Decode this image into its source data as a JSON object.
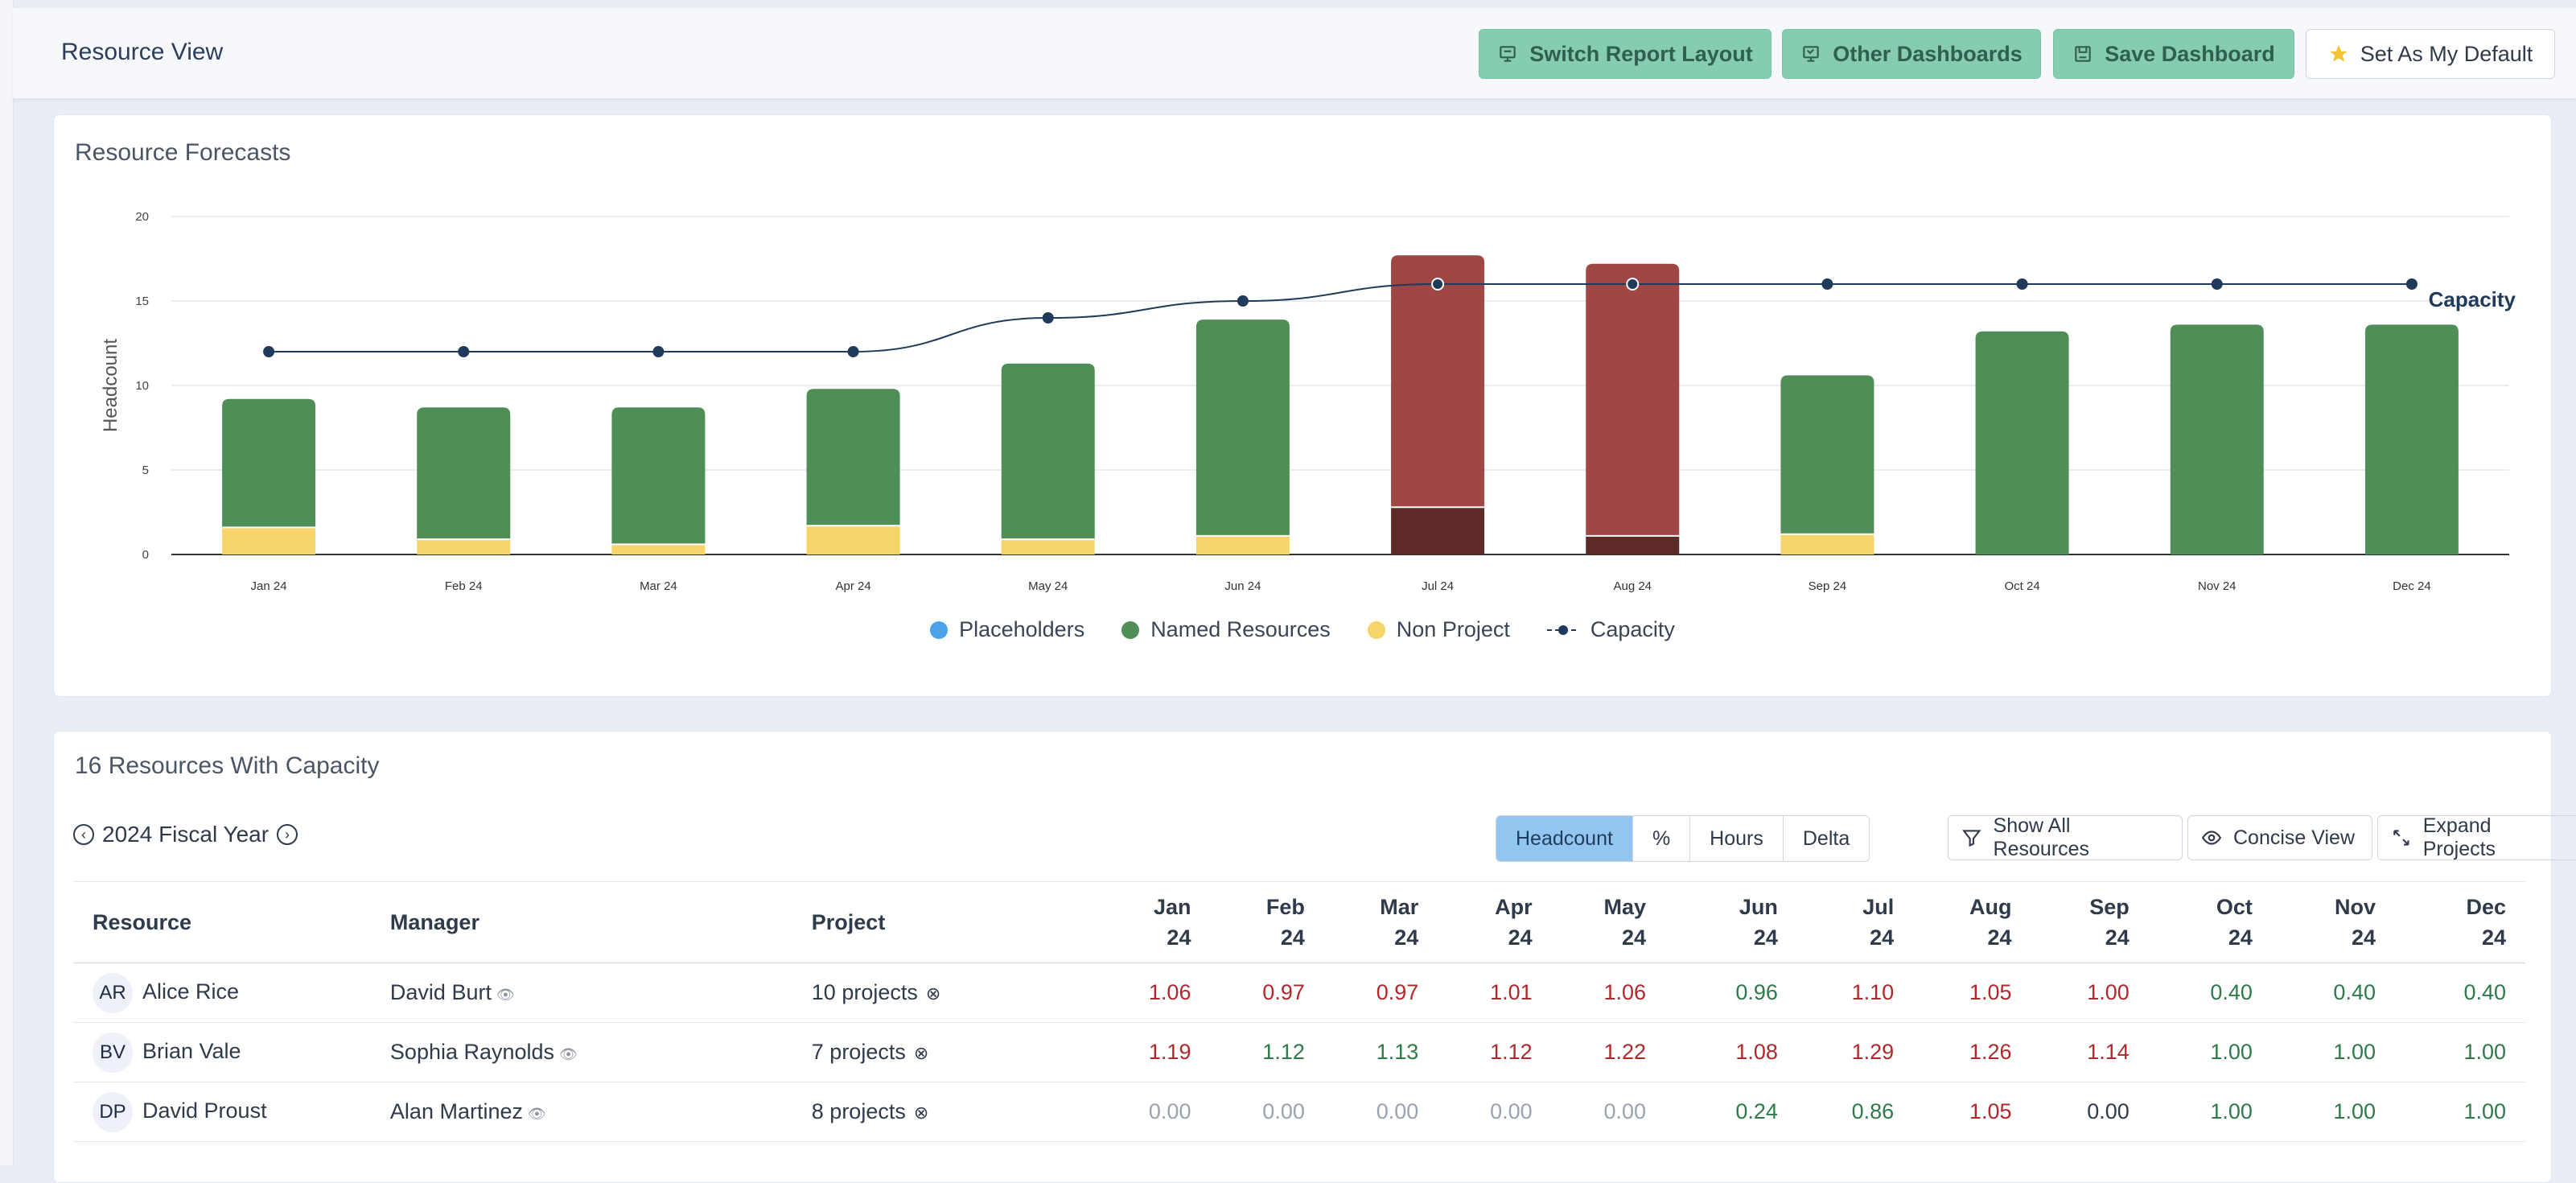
{
  "header": {
    "title": "Resource View",
    "buttons": {
      "switch_layout": "Switch Report Layout",
      "other_dashboards": "Other Dashboards",
      "save_dashboard": "Save Dashboard",
      "set_default": "Set As My Default"
    }
  },
  "forecast_card": {
    "title": "Resource Forecasts"
  },
  "chart_data": {
    "type": "bar",
    "ylabel": "Headcount",
    "ylim": [
      0,
      20
    ],
    "yticks": [
      0,
      5,
      10,
      15,
      20
    ],
    "categories": [
      "Jan 24",
      "Feb 24",
      "Mar 24",
      "Apr 24",
      "May 24",
      "Jun 24",
      "Jul 24",
      "Aug 24",
      "Sep 24",
      "Oct 24",
      "Nov 24",
      "Dec 24"
    ],
    "series": [
      {
        "name": "Placeholders",
        "color": "#4aa3e8",
        "values": [
          0,
          0,
          0,
          0,
          0,
          0,
          0,
          0,
          0,
          0,
          0,
          0
        ]
      },
      {
        "name": "Named Resources",
        "color": "#4f8f57",
        "over_capacity_color": "#9e4744",
        "values": [
          7.6,
          7.8,
          8.1,
          8.1,
          10.4,
          12.8,
          14.9,
          16.1,
          9.4,
          13.2,
          13.6,
          13.6
        ]
      },
      {
        "name": "Non Project",
        "color": "#f5d56a",
        "over_capacity_color": "#5e2a28",
        "values": [
          1.6,
          0.9,
          0.6,
          1.7,
          0.9,
          1.1,
          2.8,
          1.1,
          1.2,
          0,
          0,
          0
        ]
      }
    ],
    "capacity": {
      "name": "Capacity",
      "color": "#1f3a5a",
      "values": [
        12,
        12,
        12,
        12,
        14,
        15,
        16,
        16,
        16,
        16,
        16,
        16
      ]
    },
    "over_capacity_months": [
      "Jul 24",
      "Aug 24"
    ],
    "legend": [
      "Placeholders",
      "Named Resources",
      "Non Project",
      "Capacity"
    ],
    "legend_position": "bottom"
  },
  "table_card": {
    "title": "16 Resources With Capacity",
    "fiscal_year": "2024 Fiscal Year",
    "view_tabs": [
      "Headcount",
      "%",
      "Hours",
      "Delta"
    ],
    "active_tab": "Headcount",
    "show_all": "Show All Resources",
    "concise": "Concise View",
    "expand": "Expand Projects",
    "columns": {
      "resource": "Resource",
      "manager": "Manager",
      "project": "Project"
    },
    "months": [
      [
        "Jan",
        "24"
      ],
      [
        "Feb",
        "24"
      ],
      [
        "Mar",
        "24"
      ],
      [
        "Apr",
        "24"
      ],
      [
        "May",
        "24"
      ],
      [
        "Jun",
        "24"
      ],
      [
        "Jul",
        "24"
      ],
      [
        "Aug",
        "24"
      ],
      [
        "Sep",
        "24"
      ],
      [
        "Oct",
        "24"
      ],
      [
        "Nov",
        "24"
      ],
      [
        "Dec",
        "24"
      ]
    ],
    "rows": [
      {
        "initials": "AR",
        "name": "Alice Rice",
        "manager": "David Burt",
        "projects": "10 projects",
        "values": [
          "1.06",
          "0.97",
          "0.97",
          "1.01",
          "1.06",
          "0.96",
          "1.10",
          "1.05",
          "1.00",
          "0.40",
          "0.40",
          "0.40"
        ],
        "status": [
          "red",
          "red",
          "red",
          "red",
          "red",
          "green",
          "red",
          "red",
          "red",
          "green",
          "green",
          "green"
        ]
      },
      {
        "initials": "BV",
        "name": "Brian Vale",
        "manager": "Sophia Raynolds",
        "projects": "7 projects",
        "values": [
          "1.19",
          "1.12",
          "1.13",
          "1.12",
          "1.22",
          "1.08",
          "1.29",
          "1.26",
          "1.14",
          "1.00",
          "1.00",
          "1.00"
        ],
        "status": [
          "red",
          "green",
          "green",
          "red",
          "red",
          "red",
          "red",
          "red",
          "red",
          "green",
          "green",
          "green"
        ]
      },
      {
        "initials": "DP",
        "name": "David Proust",
        "manager": "Alan Martinez",
        "projects": "8 projects",
        "values": [
          "0.00",
          "0.00",
          "0.00",
          "0.00",
          "0.00",
          "0.24",
          "0.86",
          "1.05",
          "0.00",
          "1.00",
          "1.00",
          "1.00"
        ],
        "status": [
          "grey",
          "grey",
          "grey",
          "grey",
          "grey",
          "green",
          "green",
          "red",
          "dark",
          "green",
          "green",
          "green"
        ]
      }
    ]
  }
}
